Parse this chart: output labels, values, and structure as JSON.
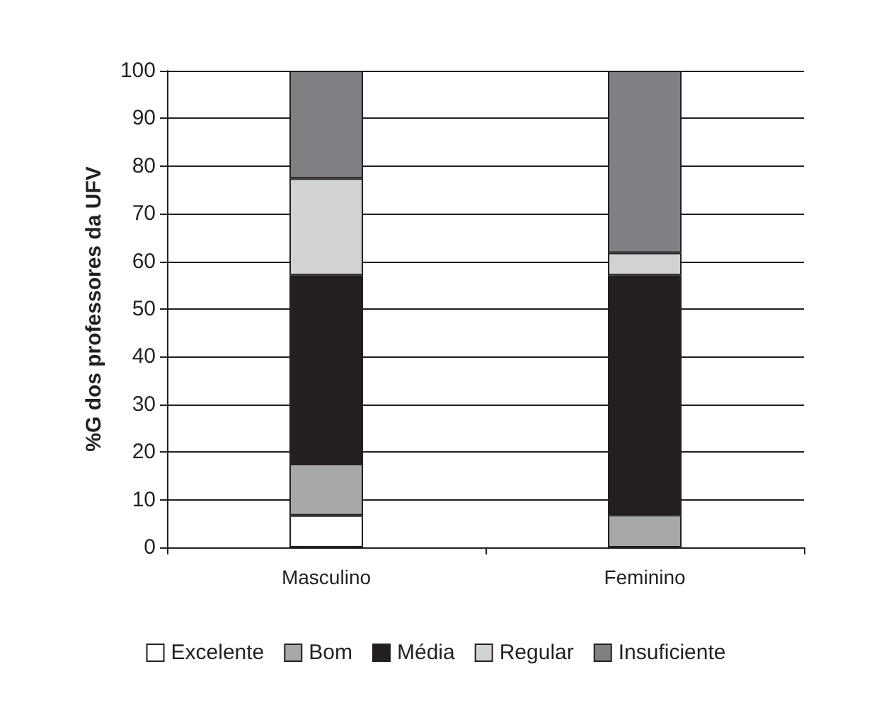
{
  "chart_data": {
    "type": "bar",
    "stacked": true,
    "ylabel": "%G dos professores da UFV",
    "categories": [
      "Masculino",
      "Feminino"
    ],
    "series": [
      {
        "name": "Excelente",
        "color": "#ffffff",
        "values": [
          6.7,
          0
        ]
      },
      {
        "name": "Bom",
        "color": "#a7a8aa",
        "values": [
          10.8,
          6.8
        ]
      },
      {
        "name": "Média",
        "color": "#231f20",
        "values": [
          39.6,
          50.3
        ]
      },
      {
        "name": "Regular",
        "color": "#d1d2d4",
        "values": [
          20.3,
          4.7
        ]
      },
      {
        "name": "Insuficiente",
        "color": "#808184",
        "values": [
          22.6,
          38.2
        ]
      }
    ],
    "ylim": [
      0,
      100
    ],
    "yticks": [
      0,
      10,
      20,
      30,
      40,
      50,
      60,
      70,
      80,
      90,
      100
    ],
    "grid": "y",
    "legend": "bottom"
  }
}
